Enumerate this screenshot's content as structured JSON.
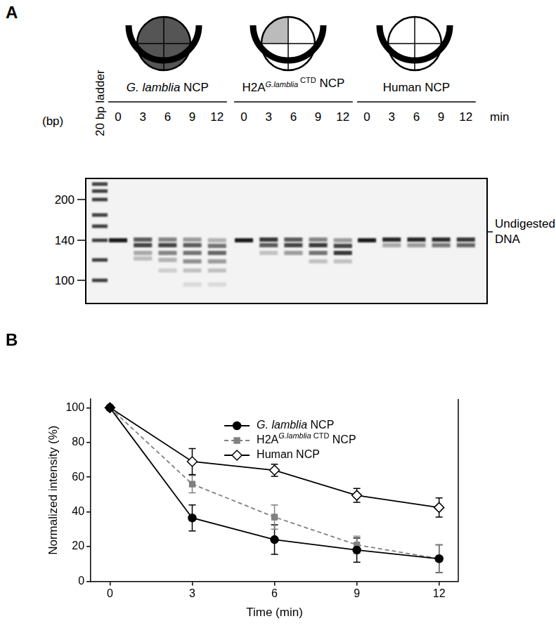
{
  "figure": {
    "panel_labels": [
      "A",
      "B"
    ]
  },
  "gel": {
    "groups": [
      {
        "label_parts": [
          {
            "text": "G. lamblia",
            "style": "italic"
          },
          {
            "text": " NCP",
            "style": "normal"
          }
        ]
      },
      {
        "label_parts": [
          {
            "text": "H2A",
            "style": "normal"
          },
          {
            "text": "G.lamblia",
            "style": "italic-superscript"
          },
          {
            "text": " CTD",
            "style": "superscript"
          },
          {
            "text": " NCP",
            "style": "normal"
          }
        ]
      },
      {
        "label_parts": [
          {
            "text": "Human NCP",
            "style": "normal"
          }
        ]
      }
    ],
    "times": [
      0,
      3,
      6,
      9,
      12
    ],
    "time_unit": "min",
    "ladder_label": "20 bp ladder",
    "size_unit": "(bp)",
    "size_marks": [
      200,
      140,
      100
    ],
    "band_label": [
      "Undigested",
      "DNA"
    ]
  },
  "chart_data": {
    "type": "line",
    "xlabel": "Time (min)",
    "ylabel": "Normalized intensity (%)",
    "x": [
      0,
      3,
      6,
      9,
      12
    ],
    "xlim": [
      -0.7,
      12.7
    ],
    "ylim": [
      0,
      105
    ],
    "xticks": [
      0,
      3,
      6,
      9,
      12
    ],
    "yticks": [
      0,
      20,
      40,
      60,
      80,
      100
    ],
    "grid": false,
    "legend": "top",
    "series": [
      {
        "name": "G. lamblia NCP",
        "color": "#000000",
        "marker": "circle",
        "line_style": "solid",
        "values": [
          100,
          36.5,
          24,
          18,
          13
        ],
        "errors": [
          0,
          7.5,
          8.5,
          7,
          8
        ]
      },
      {
        "name": "H2AG.lamblia CTD NCP",
        "color": "#808080",
        "marker": "square",
        "line_style": "dashed",
        "values": [
          100,
          56,
          37,
          21,
          13
        ],
        "errors": [
          0,
          5,
          7,
          5,
          8
        ]
      },
      {
        "name": "Human NCP",
        "color": "#000000",
        "marker": "open-diamond",
        "line_style": "solid",
        "values": [
          100,
          69,
          64,
          49.5,
          42.5
        ],
        "errors": [
          0,
          7.5,
          3.5,
          4,
          5.5
        ]
      }
    ]
  }
}
